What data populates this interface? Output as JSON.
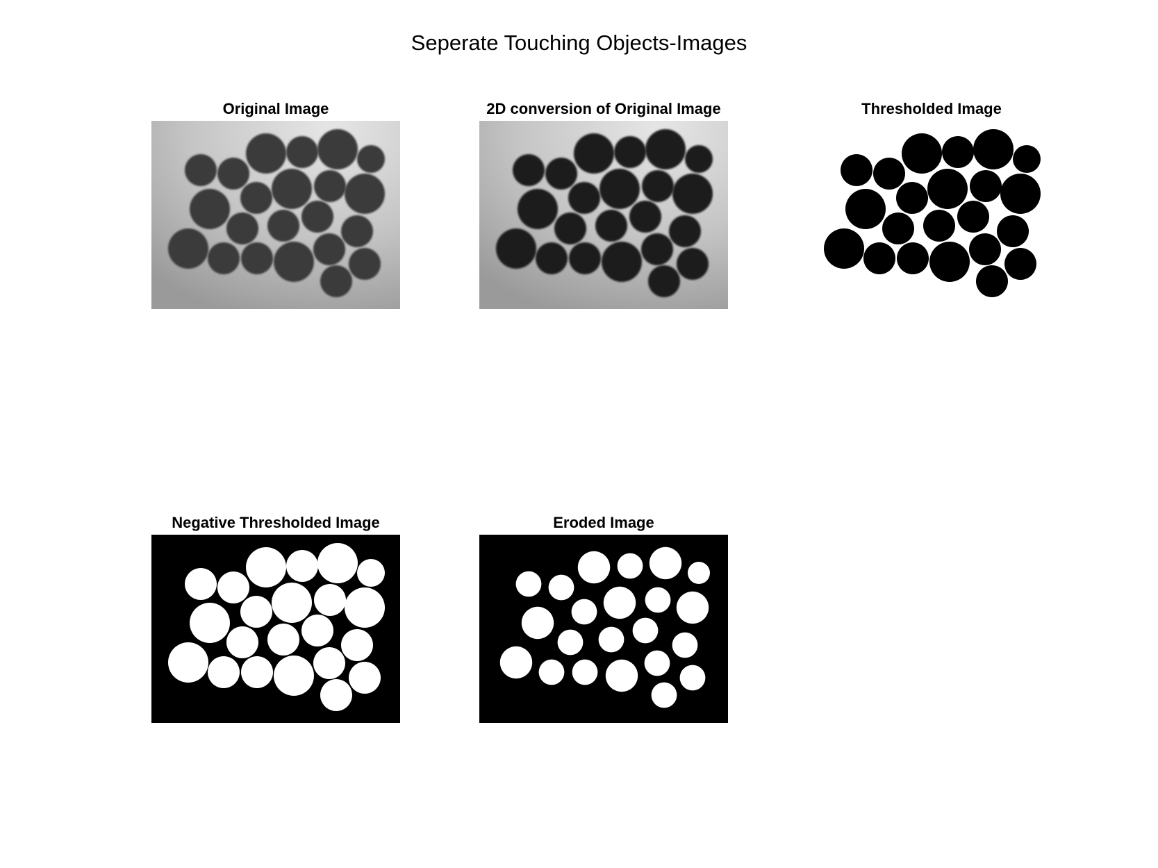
{
  "figure": {
    "title": "Seperate Touching Objects-Images"
  },
  "panels": [
    {
      "title": "Original Image",
      "style": "gray",
      "icon": "coins-grayscale-image"
    },
    {
      "title": "2D conversion of Original Image",
      "style": "gray-dark",
      "icon": "coins-2d-image"
    },
    {
      "title": "Thresholded Image",
      "style": "threshold",
      "icon": "coins-threshold-image"
    },
    {
      "title": "Negative Thresholded Image",
      "style": "negative",
      "icon": "coins-negative-image"
    },
    {
      "title": "Eroded Image",
      "style": "eroded",
      "icon": "coins-eroded-image"
    }
  ],
  "colors": {
    "background_light": "#c4c4c4",
    "background_shadow": "#9a9a9a",
    "coin_gray": "#3a3a3a",
    "coin_dark": "#1f1f1f",
    "black": "#000000",
    "white": "#ffffff"
  }
}
